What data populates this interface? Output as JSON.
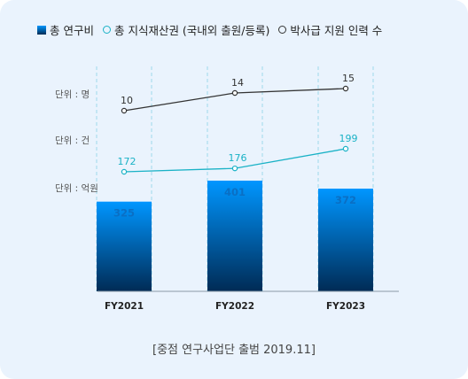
{
  "legend": {
    "items": [
      {
        "label": "총 연구비",
        "color": "#0a84e0",
        "marker": "square"
      },
      {
        "label": "총 지식재산권 (국내외 출원/등록)",
        "color": "#1ab2c6",
        "marker": "ring"
      },
      {
        "label": "박사급 지원 인력 수",
        "color": "#333333",
        "marker": "ring"
      }
    ]
  },
  "axis_units": [
    "단위 : 명",
    "단위 : 건",
    "단위 : 억원"
  ],
  "caption": "[중점 연구사업단 출범 2019.11]",
  "colors": {
    "bar_top": "#0096ff",
    "bar_bottom": "#002b55",
    "ip_line": "#1ab2c6",
    "staff_line": "#333333",
    "bar_label": "#0a6fc4",
    "grid": "#9fd8ec"
  },
  "chart_data": {
    "type": "bar",
    "categories": [
      "FY2021",
      "FY2022",
      "FY2023"
    ],
    "series": [
      {
        "name": "총 연구비",
        "type": "bar",
        "unit": "억원",
        "values": [
          325,
          401,
          372
        ]
      },
      {
        "name": "총 지식재산권 (국내외 출원/등록)",
        "type": "line",
        "unit": "건",
        "values": [
          172,
          176,
          199
        ]
      },
      {
        "name": "박사급 지원 인력 수",
        "type": "line",
        "unit": "명",
        "values": [
          10,
          14,
          15
        ]
      }
    ],
    "grid": true,
    "legend_position": "top"
  }
}
